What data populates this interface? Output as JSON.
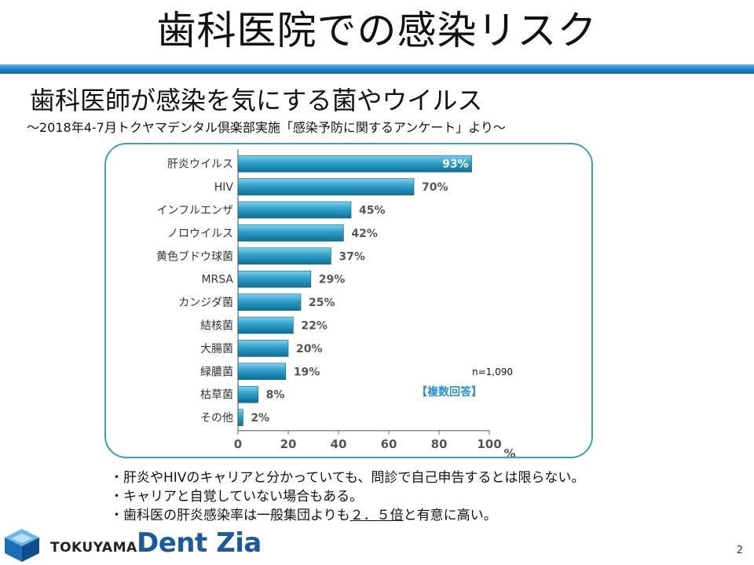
{
  "slide": {
    "title": "歯科医院での感染リスク",
    "subtitle": "歯科医師が感染を気にする菌やウイルス",
    "survey_note": "～2018年4-7月トクヤマデンタル倶楽部実施「感染予防に関するアンケート」より～",
    "page_number": "2"
  },
  "chart_data": {
    "type": "bar",
    "orientation": "horizontal",
    "categories": [
      "肝炎ウイルス",
      "HIV",
      "インフルエンザ",
      "ノロウイルス",
      "黄色ブドウ球菌",
      "MRSA",
      "カンジダ菌",
      "結核菌",
      "大腸菌",
      "緑膿菌",
      "枯草菌",
      "その他"
    ],
    "values": [
      93,
      70,
      45,
      42,
      37,
      29,
      25,
      22,
      20,
      19,
      8,
      2
    ],
    "value_labels": [
      "93%",
      "70%",
      "45%",
      "42%",
      "37%",
      "29%",
      "25%",
      "22%",
      "20%",
      "19%",
      "8%",
      "2%"
    ],
    "x_ticks": [
      0,
      20,
      40,
      60,
      80,
      100
    ],
    "x_tick_labels": [
      "0",
      "20",
      "40",
      "60",
      "80",
      "100"
    ],
    "x_unit": "%",
    "xlim": [
      0,
      100
    ],
    "sample_size": "n=1,090",
    "answer_type": "【複数回答】",
    "colors": {
      "bar_light": "#7fd0ee",
      "bar_dark": "#0f6f95",
      "frame": "#3aa0b8",
      "answer_type": "#2a8fd0"
    }
  },
  "notes": {
    "line1": "・肝炎やHIVのキャリアと分かっていても、問診で自己申告するとは限らない。",
    "line2": "・キャリアと自覚していない場合もある。",
    "line3_prefix": "・歯科医の肝炎感染率は一般集団よりも",
    "line3_emph": "２．５倍",
    "line3_suffix": "と有意に高い。"
  },
  "logo": {
    "brand": "TOKUYAMA",
    "product": "Dent Zia"
  }
}
